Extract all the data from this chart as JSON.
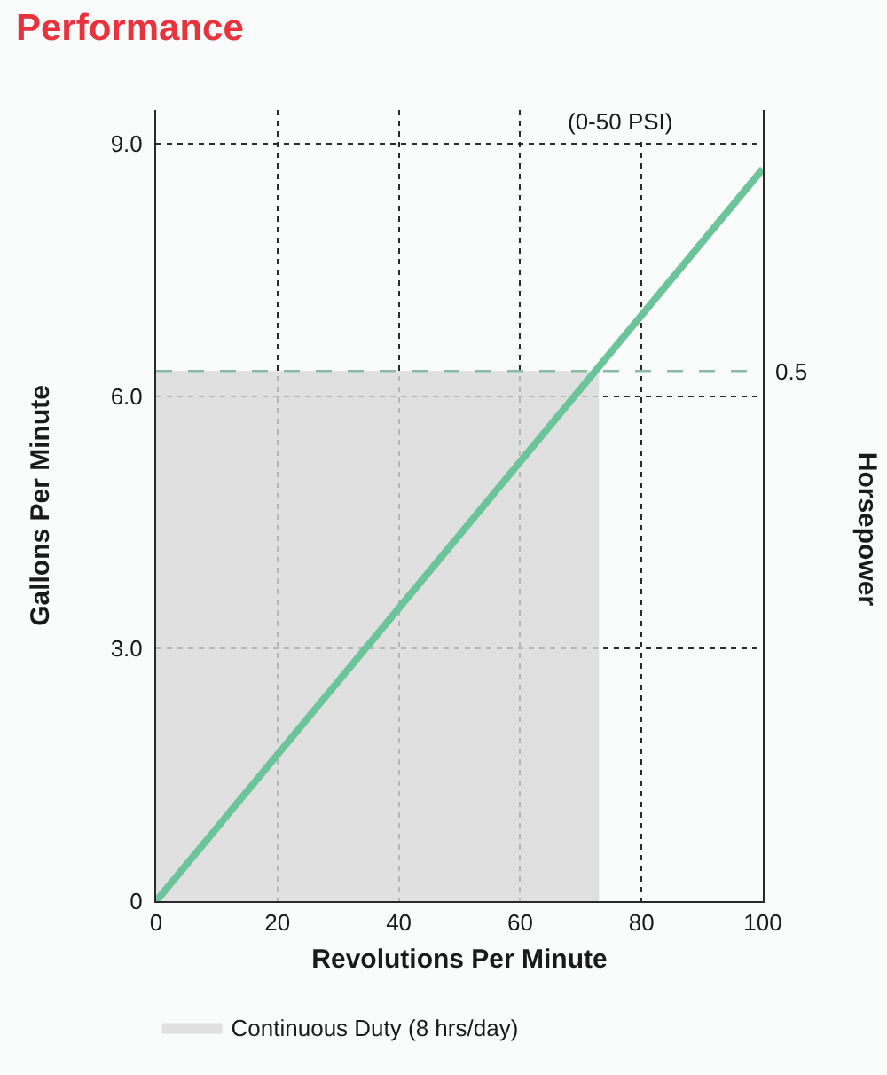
{
  "chart_data": {
    "type": "line",
    "title": "Performance",
    "xlabel": "Revolutions Per Minute",
    "ylabel": "Gallons Per Minute",
    "y2label": "Horsepower",
    "annotations": [
      "(0-50 PSI)",
      {
        "text": "0.5",
        "x": 100,
        "y": 6.3
      }
    ],
    "series": [
      {
        "type": "area",
        "name": "Continuous Duty (8 hrs/day)",
        "color": "#d9d9db",
        "x": [
          0,
          73
        ],
        "values": [
          6.3,
          6.3
        ]
      },
      {
        "color": "#6cc49a",
        "x": [
          0,
          100
        ],
        "values": [
          0,
          8.7
        ]
      }
    ],
    "xlim": [
      0,
      100
    ],
    "xticks": [
      0,
      20,
      40,
      60,
      80,
      100
    ],
    "ylim": [
      0,
      9.4
    ],
    "yticks": [
      0,
      {
        "value": 3,
        "label": "3.0"
      },
      {
        "value": 6,
        "label": "6.0"
      },
      {
        "value": 9,
        "label": "9.0"
      }
    ],
    "ref_lines": [
      {
        "axis": "y",
        "value": 6.3,
        "color": "#88bba0",
        "line_style": "dashed"
      }
    ],
    "grid": true,
    "legend": "bottom"
  }
}
